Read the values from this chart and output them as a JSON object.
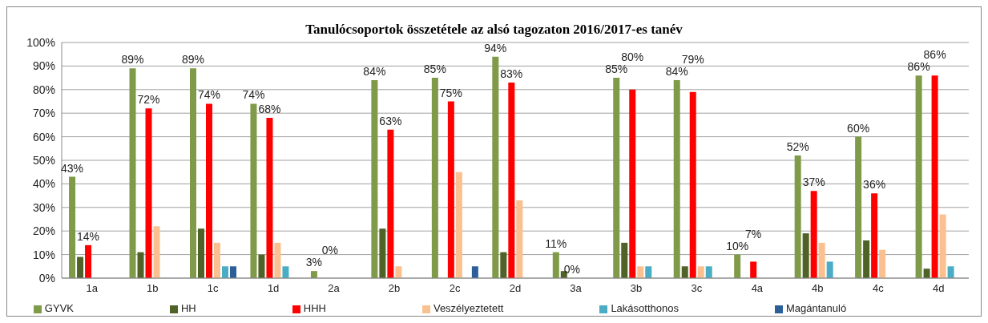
{
  "chart_data": {
    "type": "bar",
    "title": "Tanulócsoportok összetétele az alsó tagozaton 2016/2017-es tanév",
    "categories": [
      "1a",
      "1b",
      "1c",
      "1d",
      "2a",
      "2b",
      "2c",
      "2d",
      "3a",
      "3b",
      "3c",
      "4a",
      "4b",
      "4c",
      "4d"
    ],
    "ylim": [
      0,
      1
    ],
    "yticks": [
      {
        "value": 0,
        "label": "0%"
      },
      {
        "value": 0.1,
        "label": "10%"
      },
      {
        "value": 0.2,
        "label": "20%"
      },
      {
        "value": 0.3,
        "label": "30%"
      },
      {
        "value": 0.4,
        "label": "40%"
      },
      {
        "value": 0.5,
        "label": "50%"
      },
      {
        "value": 0.6,
        "label": "60%"
      },
      {
        "value": 0.7,
        "label": "70%"
      },
      {
        "value": 0.8,
        "label": "80%"
      },
      {
        "value": 0.9,
        "label": "90%"
      },
      {
        "value": 1,
        "label": "100%"
      }
    ],
    "grid": "y",
    "legend": "bottom",
    "series": [
      {
        "name": "GYVK",
        "color": "#7f9a48",
        "values": [
          0.43,
          0.89,
          0.89,
          0.74,
          0.03,
          0.84,
          0.85,
          0.94,
          0.11,
          0.85,
          0.84,
          0.1,
          0.52,
          0.6,
          0.86
        ],
        "value_labels": [
          "43%",
          "89%",
          "89%",
          "74%",
          "3%",
          "84%",
          "85%",
          "94%",
          "11%",
          "85%",
          "84%",
          "10%",
          "52%",
          "60%",
          "86%"
        ]
      },
      {
        "name": "HH",
        "color": "#4f6228",
        "values": [
          0.09,
          0.11,
          0.21,
          0.1,
          0,
          0.21,
          0,
          0.11,
          0.03,
          0.15,
          0.05,
          0,
          0.19,
          0.16,
          0.04
        ]
      },
      {
        "name": "HHH",
        "color": "#ff0000",
        "values": [
          0.14,
          0.72,
          0.74,
          0.68,
          0,
          0.63,
          0.75,
          0.83,
          0,
          0.8,
          0.79,
          0.07,
          0.37,
          0.36,
          0.86
        ],
        "value_labels": [
          "14%",
          "72%",
          "74%",
          "68%",
          "0%",
          "63%",
          "75%",
          "83%",
          "0%",
          "80%",
          "79%",
          "7%",
          "37%",
          "36%",
          "86%"
        ]
      },
      {
        "name": "Veszélyeztetett",
        "color": "#fac090",
        "values": [
          0,
          0.22,
          0.15,
          0.15,
          0,
          0.05,
          0.45,
          0.33,
          0,
          0.05,
          0.05,
          0,
          0.15,
          0.12,
          0.27
        ]
      },
      {
        "name": "Lakásotthonos",
        "color": "#4bacc6",
        "values": [
          0,
          0,
          0.05,
          0.05,
          0,
          0,
          0,
          0,
          0,
          0.05,
          0.05,
          0,
          0.07,
          0,
          0.05
        ]
      },
      {
        "name": "Magántanuló",
        "color": "#2c5f9a",
        "values": [
          0,
          0,
          0.05,
          0,
          0,
          0,
          0.05,
          0,
          0,
          0,
          0,
          0,
          0,
          0,
          0
        ]
      }
    ]
  }
}
